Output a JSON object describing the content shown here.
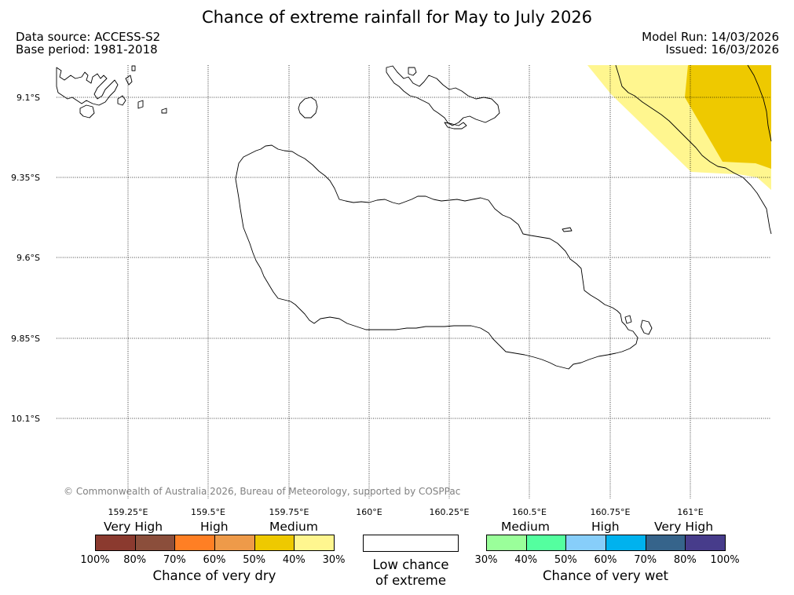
{
  "title": "Chance of extreme rainfall for May to July 2026",
  "meta": {
    "data_source": "Data source: ACCESS-S2",
    "base_period": "Base period: 1981-2018",
    "model_run": "Model Run: 14/03/2026",
    "issued": "Issued: 16/03/2026"
  },
  "map": {
    "lat_labels": [
      "9.1°S",
      "9.35°S",
      "9.6°S",
      "9.85°S",
      "10.1°S"
    ],
    "lon_labels": [
      "159.25°E",
      "159.5°E",
      "159.75°E",
      "160°E",
      "160.25°E",
      "160.5°E",
      "160.75°E",
      "161°E"
    ],
    "copyright": "© Commonwealth of Australia 2026, Bureau of Meteorology, supported by COSPPac",
    "overlay_colors": {
      "light": "#fff68f",
      "dark": "#eec900"
    }
  },
  "legend": {
    "dry": {
      "categories": [
        "Very High",
        "High",
        "Medium"
      ],
      "colors": [
        "#8b3a2f",
        "#8b4e3b",
        "#ff7f24",
        "#ee9a49",
        "#eec900",
        "#fff68f"
      ],
      "ticks": [
        "100%",
        "80%",
        "70%",
        "60%",
        "50%",
        "40%",
        "30%"
      ],
      "label": "Chance of very dry"
    },
    "low": {
      "label_line1": "Low chance",
      "label_line2": "of extreme"
    },
    "wet": {
      "categories": [
        "Medium",
        "High",
        "Very High"
      ],
      "colors": [
        "#9aff9a",
        "#54ff9f",
        "#87cefa",
        "#00b2ee",
        "#36648b",
        "#473c8b"
      ],
      "ticks": [
        "30%",
        "40%",
        "50%",
        "60%",
        "70%",
        "80%",
        "100%"
      ],
      "label": "Chance of very wet"
    }
  }
}
